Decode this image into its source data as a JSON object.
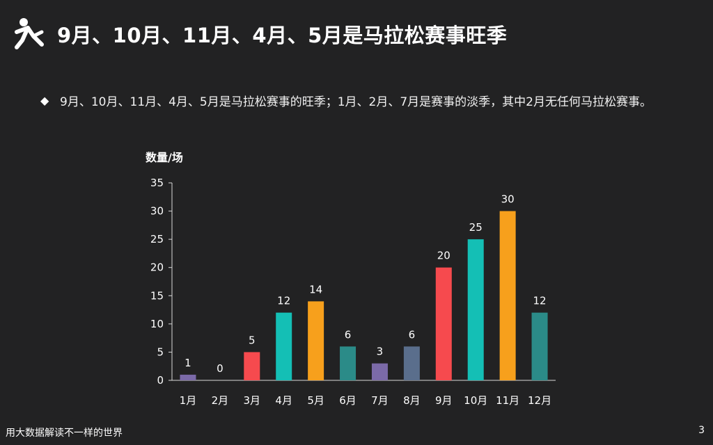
{
  "header": {
    "icon": "runner-icon",
    "title": "9月、10月、11月、4月、5月是马拉松赛事旺季"
  },
  "bullet": {
    "icon": "diamond-bullet",
    "text": "9月、10月、11月、4月、5月是马拉松赛事的旺季；1月、2月、7月是赛事的淡季，其中2月无任何马拉松赛事。"
  },
  "chart_data": {
    "type": "bar",
    "ylabel": "数量/场",
    "ylim": [
      0,
      35
    ],
    "yticks": [
      0,
      5,
      10,
      15,
      20,
      25,
      30,
      35
    ],
    "categories": [
      "1月",
      "2月",
      "3月",
      "4月",
      "5月",
      "6月",
      "7月",
      "8月",
      "9月",
      "10月",
      "11月",
      "12月"
    ],
    "values": [
      1,
      0,
      5,
      12,
      14,
      6,
      3,
      6,
      20,
      25,
      30,
      12
    ],
    "colors": [
      "#7b6aa8",
      "#7b6aa8",
      "#f64a4e",
      "#14bfb5",
      "#f7a01c",
      "#2b8b88",
      "#7b6aa8",
      "#5a6e8c",
      "#f64a4e",
      "#14bfb5",
      "#f7a01c",
      "#2b8b88"
    ],
    "data_labels": true,
    "grid": false
  },
  "footer": {
    "text": "用大数据解读不一样的世界",
    "page": "3"
  }
}
